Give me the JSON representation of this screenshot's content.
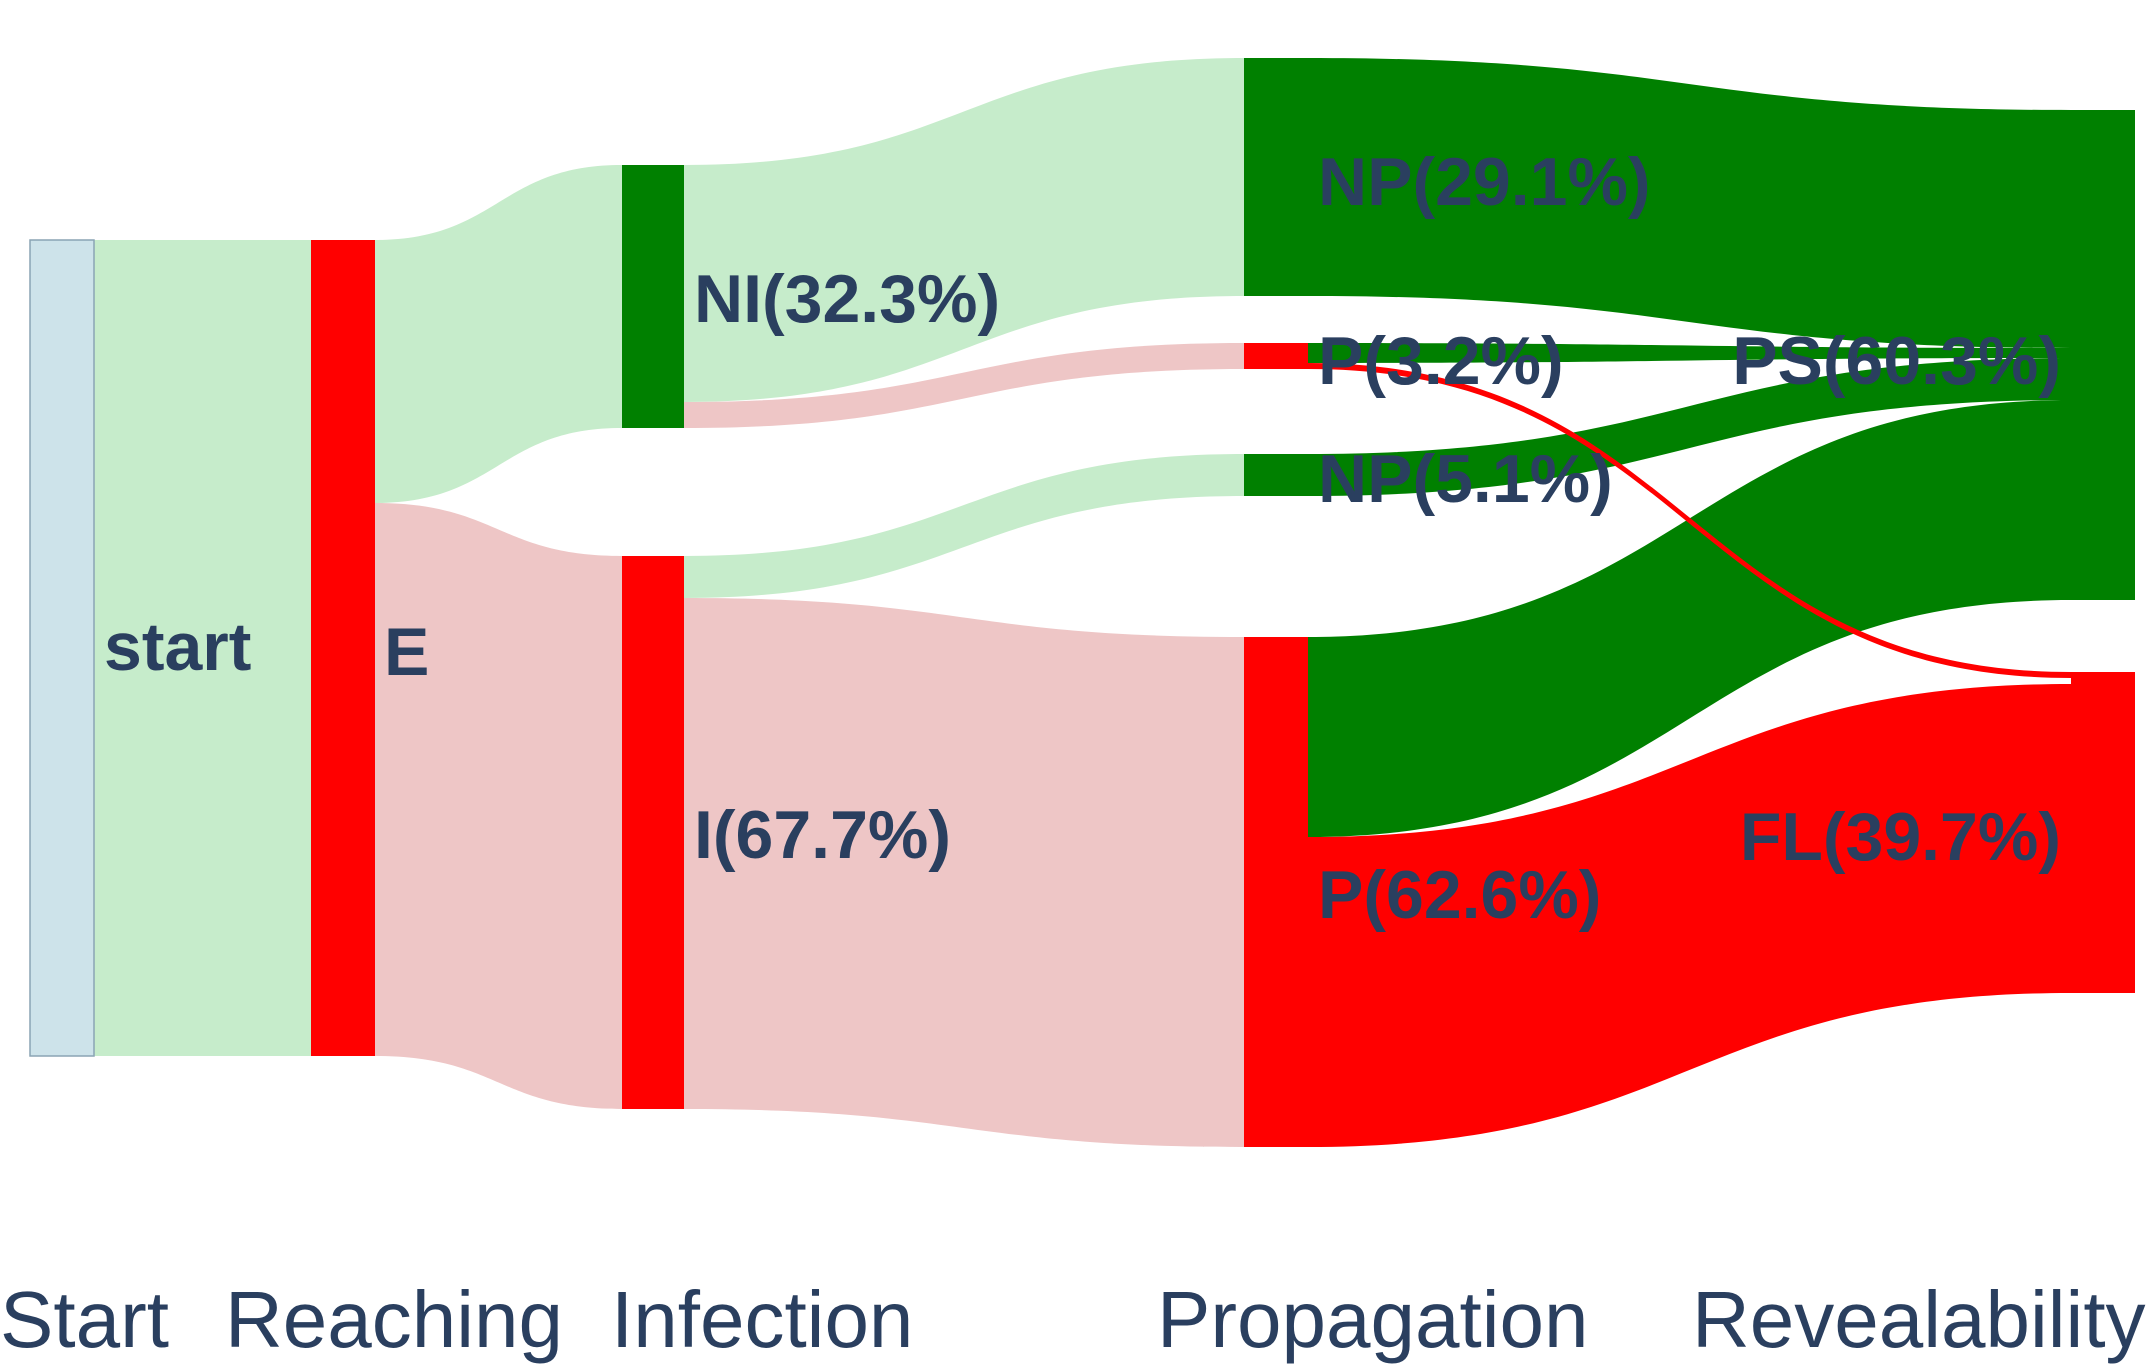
{
  "diagram": {
    "type": "sankey",
    "colors": {
      "green_node": "#008000",
      "red_node": "#ff0000",
      "start_node": "#cde3ea",
      "green_link": "#c6eccb",
      "red_link": "#eec6c6",
      "text": "#2a3f5f"
    },
    "stages": [
      {
        "id": "stage-start",
        "label": "Start"
      },
      {
        "id": "stage-reaching",
        "label": "Reaching"
      },
      {
        "id": "stage-infection",
        "label": "Infection"
      },
      {
        "id": "stage-propagation",
        "label": "Propagation"
      },
      {
        "id": "stage-revealability",
        "label": "Revealability"
      }
    ],
    "nodes": [
      {
        "id": "start",
        "label": "start",
        "color": "start"
      },
      {
        "id": "E",
        "label": "E",
        "color": "red"
      },
      {
        "id": "NI",
        "label": "NI(32.3%)",
        "color": "green",
        "percent": 32.3
      },
      {
        "id": "I",
        "label": "I(67.7%)",
        "color": "red",
        "percent": 67.7
      },
      {
        "id": "NP1",
        "label": "NP(29.1%)",
        "color": "green",
        "percent": 29.1
      },
      {
        "id": "P1",
        "label": "P(3.2%)",
        "color": "red",
        "percent": 3.2
      },
      {
        "id": "NP2",
        "label": "NP(5.1%)",
        "color": "green",
        "percent": 5.1
      },
      {
        "id": "P2",
        "label": "P(62.6%)",
        "color": "red",
        "percent": 62.6
      },
      {
        "id": "PS",
        "label": "PS(60.3%)",
        "color": "green",
        "percent": 60.3
      },
      {
        "id": "FL",
        "label": "FL(39.7%)",
        "color": "red",
        "percent": 39.7
      }
    ],
    "links": [
      {
        "source": "start",
        "target": "E",
        "value": 100,
        "color": "green"
      },
      {
        "source": "E",
        "target": "NI",
        "value": 32.3,
        "color": "green"
      },
      {
        "source": "E",
        "target": "I",
        "value": 67.7,
        "color": "red"
      },
      {
        "source": "NI",
        "target": "NP1",
        "value": 29.1,
        "color": "green"
      },
      {
        "source": "NI",
        "target": "P1",
        "value": 3.2,
        "color": "red"
      },
      {
        "source": "I",
        "target": "NP2",
        "value": 5.1,
        "color": "green"
      },
      {
        "source": "I",
        "target": "P2",
        "value": 62.6,
        "color": "red"
      },
      {
        "source": "NP1",
        "target": "PS",
        "value": 29.1,
        "color": "green_node"
      },
      {
        "source": "P1",
        "target": "PS",
        "value": 2.5,
        "color": "green_node"
      },
      {
        "source": "NP2",
        "target": "PS",
        "value": 5.1,
        "color": "green_node"
      },
      {
        "source": "P2",
        "target": "PS",
        "value": 23.6,
        "color": "green_node"
      },
      {
        "source": "P1",
        "target": "FL",
        "value": 0.7,
        "color": "red_node"
      },
      {
        "source": "P2",
        "target": "FL",
        "value": 39.0,
        "color": "red_node"
      }
    ]
  }
}
